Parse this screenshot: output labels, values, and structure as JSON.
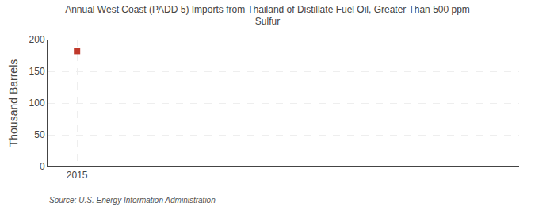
{
  "chart_data": {
    "type": "scatter",
    "title": "Annual West Coast (PADD 5) Imports from Thailand of Distillate Fuel Oil, Greater Than 500 ppm\nSulfur",
    "ylabel": "Thousand Barrels",
    "annotations": [
      "Source: U.S. Energy Information Administration"
    ],
    "x": [
      2015
    ],
    "values": [
      182
    ],
    "color": "#c0392b",
    "marker": "square",
    "xlim": [
      2014.5,
      2022.5
    ],
    "xticks": [
      2015
    ],
    "ylim": [
      0,
      200
    ],
    "yticks": [
      0,
      50,
      100,
      150,
      200
    ],
    "grid": true
  }
}
